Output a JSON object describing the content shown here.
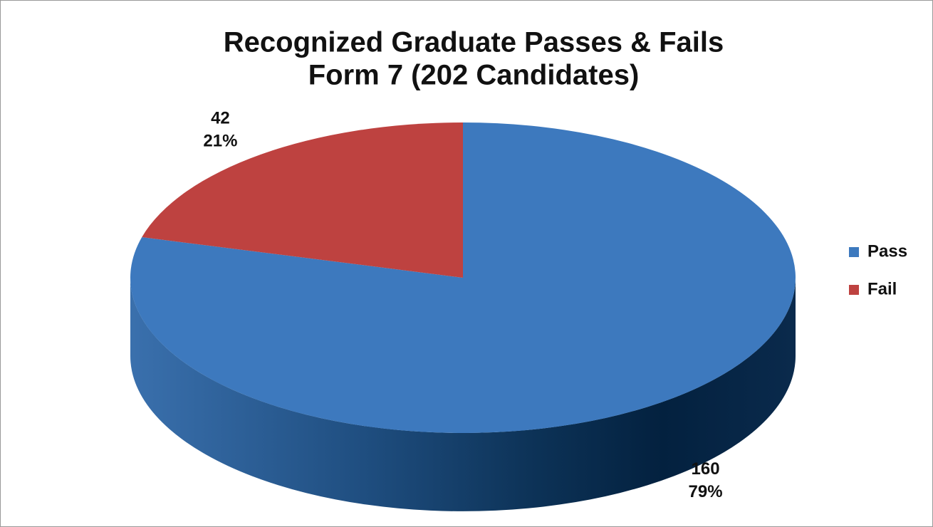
{
  "chart_data": {
    "type": "pie",
    "title": "Recognized Graduate Passes & Fails",
    "subtitle": "Form 7 (202 Candidates)",
    "categories": [
      "Pass",
      "Fail"
    ],
    "values": [
      160,
      42
    ],
    "percents": [
      79,
      21
    ],
    "percent_labels": [
      "79%",
      "21%"
    ],
    "colors": [
      "#3d79be",
      "#be4240"
    ],
    "legend": "right"
  }
}
